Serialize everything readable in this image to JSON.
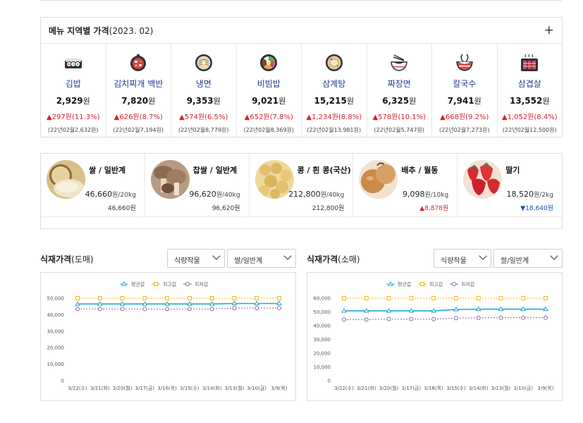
{
  "menu_panel": {
    "title": "메뉴 지역별 가격",
    "title_sub": "(2023. 02)",
    "expand_label": "+",
    "items": [
      {
        "icon": "gimbap-icon",
        "name": "김밥",
        "price": "2,929",
        "unit": "원",
        "change": "▲297원(11.3%)",
        "prev": "(22년02월2,632원)"
      },
      {
        "icon": "kimchi-stew-icon",
        "name": "김치찌개 백반",
        "price": "7,820",
        "unit": "원",
        "change": "▲626원(8.7%)",
        "prev": "(22년02월7,194원)"
      },
      {
        "icon": "cold-noodle-icon",
        "name": "냉면",
        "price": "9,353",
        "unit": "원",
        "change": "▲574원(6.5%)",
        "prev": "(22년02월8,779원)"
      },
      {
        "icon": "bibimbap-icon",
        "name": "비빔밥",
        "price": "9,021",
        "unit": "원",
        "change": "▲652원(7.8%)",
        "prev": "(22년02월8,369원)"
      },
      {
        "icon": "samgyetang-icon",
        "name": "삼계탕",
        "price": "15,215",
        "unit": "원",
        "change": "▲1,234원(8.8%)",
        "prev": "(22년02월13,981원)"
      },
      {
        "icon": "jajangmyeon-icon",
        "name": "짜장면",
        "price": "6,325",
        "unit": "원",
        "change": "▲578원(10.1%)",
        "prev": "(22년02월5,747원)"
      },
      {
        "icon": "kalguksu-icon",
        "name": "칼국수",
        "price": "7,941",
        "unit": "원",
        "change": "▲668원(9.2%)",
        "prev": "(22년02월7,273원)"
      },
      {
        "icon": "samgyeopsal-icon",
        "name": "삼겹살",
        "price": "13,552",
        "unit": "원",
        "change": "▲1,052원(8.4%)",
        "prev": "(22년02월12,500원)"
      }
    ]
  },
  "ingredients": [
    {
      "icon": "rice-photo",
      "name": "쌀 / 일반계",
      "price": "46,660",
      "unit": "원/20kg",
      "sub": "46,660원",
      "trend": "flat"
    },
    {
      "icon": "glutinous-rice-photo",
      "name": "찹쌀 / 일반계",
      "price": "96,620",
      "unit": "원/40kg",
      "sub": "96,620원",
      "trend": "flat"
    },
    {
      "icon": "soybean-photo",
      "name": "콩 / 흰 콩(국산)",
      "price": "212,800",
      "unit": "원/40kg",
      "sub": "212,800원",
      "trend": "flat"
    },
    {
      "icon": "cabbage-photo",
      "name": "배추 / 월동",
      "price": "9,098",
      "unit": "원/10kg",
      "sub": "▲8,878원",
      "trend": "up"
    },
    {
      "icon": "strawberry-photo",
      "name": "딸기",
      "price": "18,520",
      "unit": "원/2kg",
      "sub": "▼18,640원",
      "trend": "down"
    }
  ],
  "charts": {
    "wholesale": {
      "title": "식재가격",
      "title_sub": "(도매)",
      "select1": "식량작물",
      "select2": "쌀/일반계"
    },
    "retail": {
      "title": "식재가격",
      "title_sub": "(소매)",
      "select1": "식량작물",
      "select2": "쌀/일반계"
    },
    "legend": {
      "avg": "평균값",
      "max": "최고값",
      "min": "최저값"
    },
    "colors": {
      "avg": "#22a8d6",
      "max": "#f2b51c",
      "min": "#8e5fa0"
    }
  },
  "chart_data": [
    {
      "type": "line",
      "categories": [
        "3/22(수)",
        "3/21(화)",
        "3/20(월)",
        "3/17(금)",
        "3/16(목)",
        "3/15(수)",
        "3/14(화)",
        "3/13(월)",
        "3/10(금)",
        "3/9(목)"
      ],
      "series": [
        {
          "name": "평균값",
          "values": [
            46500,
            46500,
            46500,
            46500,
            46500,
            46500,
            46500,
            46800,
            46800,
            46800
          ]
        },
        {
          "name": "최고값",
          "values": [
            50000,
            50000,
            50000,
            50000,
            50000,
            50000,
            50000,
            50000,
            50000,
            50000
          ]
        },
        {
          "name": "최저값",
          "values": [
            43500,
            43500,
            43500,
            43500,
            43500,
            43500,
            43500,
            44000,
            44000,
            44000
          ]
        }
      ],
      "yticks": [
        "0",
        "10,000",
        "20,000",
        "30,000",
        "40,000",
        "50,000"
      ],
      "ylim": [
        0,
        50000
      ],
      "grid": false,
      "legend": "top-center"
    },
    {
      "type": "line",
      "categories": [
        "3/22(수)",
        "3/21(화)",
        "3/20(월)",
        "3/17(금)",
        "3/16(목)",
        "3/15(수)",
        "3/14(화)",
        "3/13(월)",
        "3/10(금)",
        "3/9(목)"
      ],
      "series": [
        {
          "name": "평균값",
          "values": [
            50800,
            50800,
            50800,
            50800,
            50800,
            51800,
            52000,
            52000,
            52000,
            52000
          ]
        },
        {
          "name": "최고값",
          "values": [
            60000,
            60000,
            60000,
            60000,
            60000,
            60000,
            60000,
            60000,
            60000,
            60000
          ]
        },
        {
          "name": "최저값",
          "values": [
            44500,
            44500,
            44800,
            44800,
            44800,
            45500,
            45800,
            45800,
            45800,
            45800
          ]
        }
      ],
      "yticks": [
        "0",
        "10,000",
        "20,000",
        "30,000",
        "40,000",
        "50,000",
        "60,000"
      ],
      "ylim": [
        0,
        60000
      ],
      "grid": false,
      "legend": "top-center"
    }
  ]
}
